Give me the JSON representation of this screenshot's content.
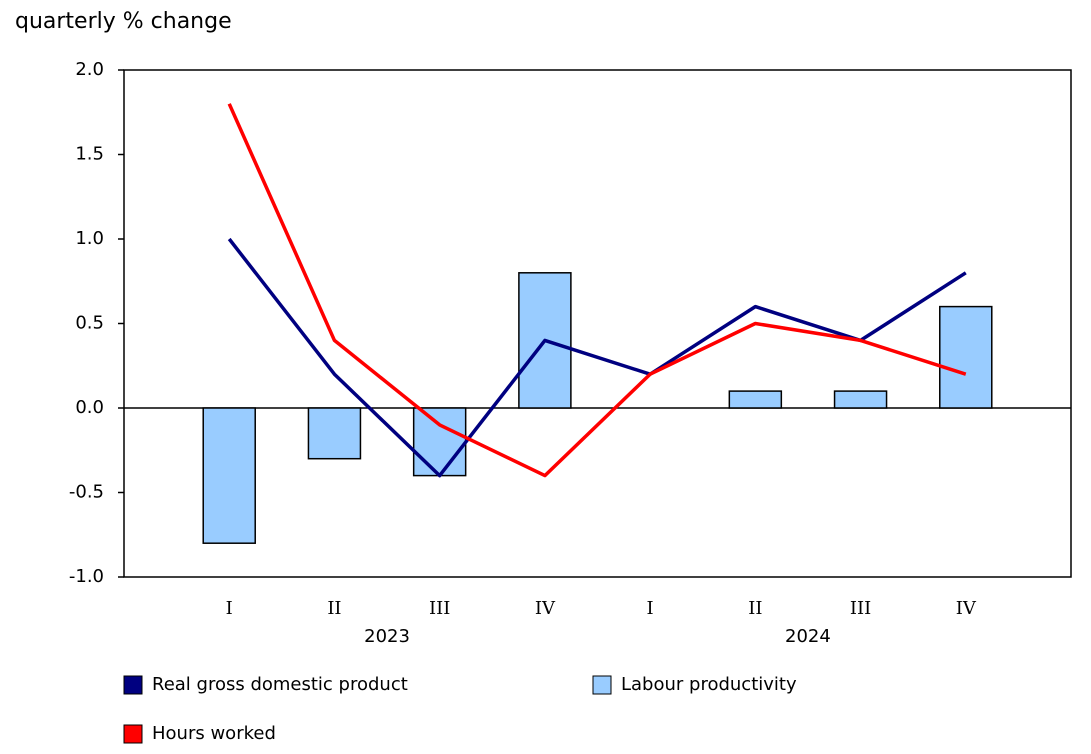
{
  "chart_data": {
    "type": "combo",
    "y_label": "quarterly % change",
    "categories": [
      "I",
      "II",
      "III",
      "IV",
      "I",
      "II",
      "III",
      "IV"
    ],
    "groups": [
      {
        "label": "2023",
        "from": 0,
        "to": 3
      },
      {
        "label": "2024",
        "from": 4,
        "to": 7
      }
    ],
    "series": [
      {
        "name": "Real gross domestic product",
        "type": "line",
        "color": "#000080",
        "values": [
          1.0,
          0.2,
          -0.4,
          0.4,
          0.2,
          0.6,
          0.4,
          0.8
        ]
      },
      {
        "name": "Labour productivity",
        "type": "bar",
        "color": "#99ccff",
        "values": [
          -0.8,
          -0.3,
          -0.4,
          0.8,
          0.0,
          0.1,
          0.1,
          0.6
        ]
      },
      {
        "name": "Hours worked",
        "type": "line",
        "color": "#ff0000",
        "values": [
          1.8,
          0.4,
          -0.1,
          -0.4,
          0.2,
          0.5,
          0.4,
          0.2
        ]
      }
    ],
    "ylim": [
      -1.0,
      2.0
    ],
    "yticks": [
      {
        "value": -1.0,
        "label": "-1.0"
      },
      {
        "value": -0.5,
        "label": "-0.5"
      },
      {
        "value": 0,
        "label": "0.0"
      },
      {
        "value": 0.5,
        "label": "0.5"
      },
      {
        "value": 1.0,
        "label": "1.0"
      },
      {
        "value": 1.5,
        "label": "1.5"
      },
      {
        "value": 2.0,
        "label": "2.0"
      }
    ],
    "grid": false
  }
}
